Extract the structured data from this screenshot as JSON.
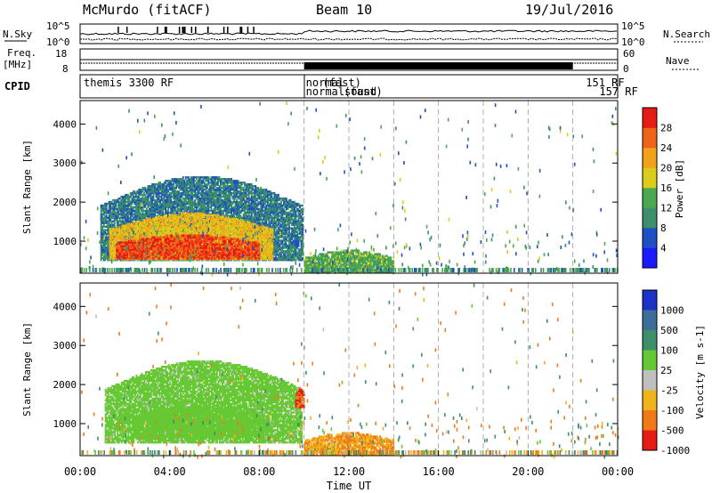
{
  "header": {
    "radar": "McMurdo (fitACF)",
    "beam": "Beam 10",
    "date": "19/Jul/2016"
  },
  "top_panels": {
    "nsky_label": "N.Sky",
    "nsearch_label": "N.Search",
    "noise_ticks": [
      "10^5",
      "10^0"
    ],
    "freq_label_line1": "Freq.",
    "freq_label_line2": "[MHz]",
    "freq_ticks": [
      "18",
      "8"
    ],
    "nave_label": "Nave",
    "nave_ticks": [
      "60",
      "0"
    ],
    "cpid_label": "CPID",
    "cpid_entries": [
      {
        "text": "themis 3300 RF",
        "row": 0,
        "x": 0
      },
      {
        "text": "normal",
        "row": 0,
        "x": 10.0
      },
      {
        "text": "normalsound",
        "row": 1,
        "x": 10.0
      },
      {
        "text": "(fast)",
        "row": 0,
        "x": 10.75
      },
      {
        "text": "(fast)",
        "row": 1,
        "x": 11.7
      },
      {
        "text": "151 RF",
        "row": 0,
        "x": 22.5
      },
      {
        "text": "157 RF",
        "row": 1,
        "x": 23.1
      }
    ]
  },
  "chart_data": [
    {
      "type": "heatmap",
      "panel": "power",
      "ylabel": "Slant Range [km]",
      "xlabel": "",
      "ylim": [
        180,
        4600
      ],
      "yticks": [
        "1000",
        "2000",
        "3000",
        "4000"
      ],
      "xlim": [
        0,
        24
      ],
      "colorbar_label": "Power [dB]",
      "colorbar_ticks": [
        "4",
        "8",
        "12",
        "16",
        "20",
        "24",
        "28"
      ],
      "colorbar_range": [
        0,
        32
      ],
      "blobs": [
        {
          "t0": 0.9,
          "t1": 9.9,
          "r0": 500,
          "r1": 2650,
          "value": 9
        },
        {
          "t0": 1.3,
          "t1": 8.6,
          "r0": 520,
          "r1": 1700,
          "value": 20
        },
        {
          "t0": 1.6,
          "t1": 8.0,
          "r0": 540,
          "r1": 1150,
          "value": 28
        },
        {
          "t0": 10.0,
          "t1": 14.0,
          "r0": 200,
          "r1": 750,
          "value": 14
        }
      ]
    },
    {
      "type": "heatmap",
      "panel": "velocity",
      "ylabel": "Slant Range [km]",
      "xlabel": "Time UT",
      "ylim": [
        180,
        4600
      ],
      "yticks": [
        "1000",
        "2000",
        "3000",
        "4000"
      ],
      "xlim": [
        0,
        24
      ],
      "xticks": [
        "00:00",
        "04:00",
        "08:00",
        "12:00",
        "16:00",
        "20:00",
        "00:00"
      ],
      "colorbar_label": "Velocity [m s-1]",
      "colorbar_ticks": [
        "1000",
        "500",
        "100",
        "25",
        "-25",
        "-100",
        "-500",
        "-1000"
      ],
      "blobs": [
        {
          "t0": 1.1,
          "t1": 9.9,
          "r0": 500,
          "r1": 2600,
          "value": 50
        },
        {
          "t0": 2.4,
          "t1": 8.2,
          "r0": 640,
          "r1": 1450,
          "value": 60
        },
        {
          "t0": 9.6,
          "t1": 10.0,
          "r0": 1400,
          "r1": 1900,
          "value": -500
        },
        {
          "t0": 10.0,
          "t1": 14.0,
          "r0": 200,
          "r1": 750,
          "value": -100
        }
      ]
    }
  ],
  "colors": {
    "power_scale": [
      "#1a1aff",
      "#1f4fc4",
      "#3b8f6a",
      "#4aa84f",
      "#d9cd1a",
      "#f0a21a",
      "#f06419",
      "#e81a14"
    ],
    "velocity_scale": [
      "#1a33c4",
      "#3b6f9a",
      "#3b8f6a",
      "#66c933",
      "#bfbfbf",
      "#f0b41a",
      "#f07a19",
      "#e81a14"
    ]
  }
}
